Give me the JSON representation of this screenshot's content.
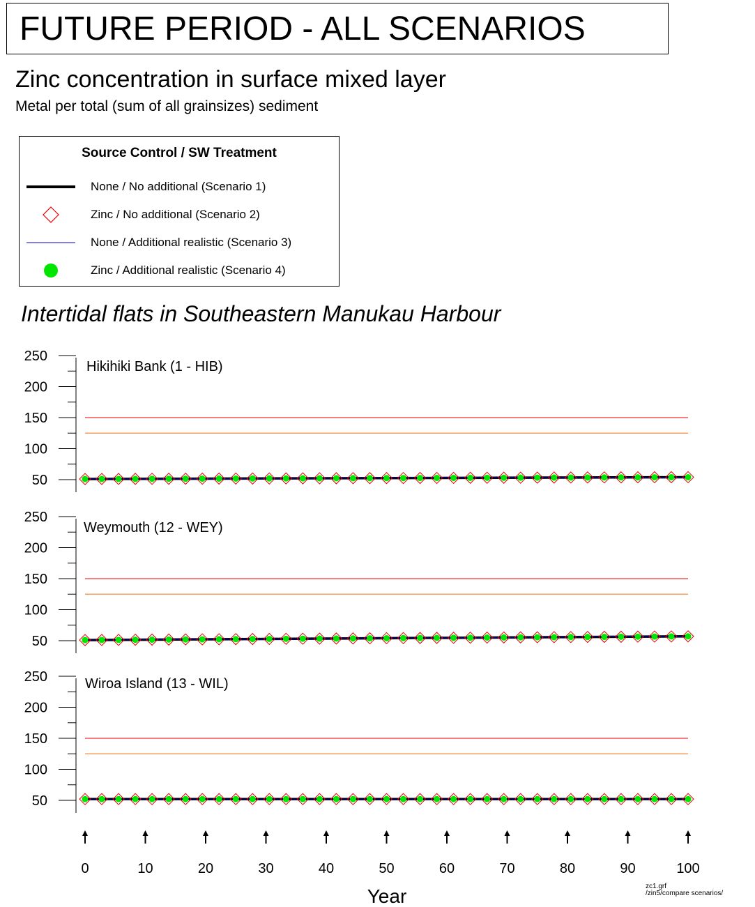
{
  "header": {
    "title": "FUTURE PERIOD - ALL SCENARIOS",
    "subtitle": "Zinc concentration in surface mixed layer",
    "subsubtitle": "Metal per total (sum of all grainsizes) sediment"
  },
  "legend": {
    "title": "Source Control / SW Treatment",
    "items": [
      {
        "label": "None / No additional (Scenario 1)",
        "symbol": "thick-line",
        "color": "#000000"
      },
      {
        "label": "Zinc / No additional (Scenario 2)",
        "symbol": "diamond-outline",
        "color": "#e00000"
      },
      {
        "label": "None / Additional realistic (Scenario 3)",
        "symbol": "thin-line",
        "color": "#0000c0"
      },
      {
        "label": "Zinc / Additional realistic (Scenario 4)",
        "symbol": "filled-circle",
        "color": "#00e600"
      }
    ]
  },
  "region_title": "Intertidal flats in Southeastern Manukau Harbour",
  "footnote": {
    "line1": "zc1.grf",
    "line2": "/zin5/compare scenarios/"
  },
  "colors": {
    "threshold_high": "#ee3333",
    "threshold_low": "#f08a3c",
    "scenario1": "#000000",
    "scenario2": "#e00000",
    "scenario3": "#0000c0",
    "scenario4": "#00e600"
  },
  "chart_data": [
    {
      "type": "line",
      "title": "Hikihiki Bank (1 - HIB)",
      "xlabel": "",
      "ylabel": "",
      "ylim": [
        35,
        250
      ],
      "yticks": [
        50,
        100,
        150,
        200,
        250
      ],
      "xlim": [
        0,
        100
      ],
      "thresholds": [
        150,
        125
      ],
      "x": [
        0,
        100
      ],
      "series": [
        {
          "name": "None / No additional (Scenario 1)",
          "values": [
            51,
            54
          ]
        },
        {
          "name": "Zinc / No additional (Scenario 2)",
          "values": [
            51,
            54
          ]
        },
        {
          "name": "None / Additional realistic (Scenario 3)",
          "values": [
            51,
            54
          ]
        },
        {
          "name": "Zinc / Additional realistic (Scenario 4)",
          "values": [
            51,
            54
          ]
        }
      ]
    },
    {
      "type": "line",
      "title": "Weymouth (12 - WEY)",
      "xlabel": "",
      "ylabel": "",
      "ylim": [
        35,
        250
      ],
      "yticks": [
        50,
        100,
        150,
        200,
        250
      ],
      "xlim": [
        0,
        100
      ],
      "thresholds": [
        150,
        125
      ],
      "x": [
        0,
        100
      ],
      "series": [
        {
          "name": "None / No additional (Scenario 1)",
          "values": [
            51,
            57
          ]
        },
        {
          "name": "Zinc / No additional (Scenario 2)",
          "values": [
            51,
            57
          ]
        },
        {
          "name": "None / Additional realistic (Scenario 3)",
          "values": [
            51,
            57
          ]
        },
        {
          "name": "Zinc / Additional realistic (Scenario 4)",
          "values": [
            51,
            57
          ]
        }
      ]
    },
    {
      "type": "line",
      "title": "Wiroa Island (13 - WIL)",
      "xlabel": "Year",
      "ylabel": "",
      "ylim": [
        35,
        250
      ],
      "yticks": [
        50,
        100,
        150,
        200,
        250
      ],
      "xlim": [
        0,
        100
      ],
      "xticks": [
        0,
        10,
        20,
        30,
        40,
        50,
        60,
        70,
        80,
        90,
        100
      ],
      "thresholds": [
        150,
        125
      ],
      "x": [
        0,
        100
      ],
      "series": [
        {
          "name": "None / No additional (Scenario 1)",
          "values": [
            52,
            52
          ]
        },
        {
          "name": "Zinc / No additional (Scenario 2)",
          "values": [
            52,
            52
          ]
        },
        {
          "name": "None / Additional realistic (Scenario 3)",
          "values": [
            52,
            52
          ]
        },
        {
          "name": "Zinc / Additional realistic (Scenario 4)",
          "values": [
            52,
            52
          ]
        }
      ]
    }
  ]
}
